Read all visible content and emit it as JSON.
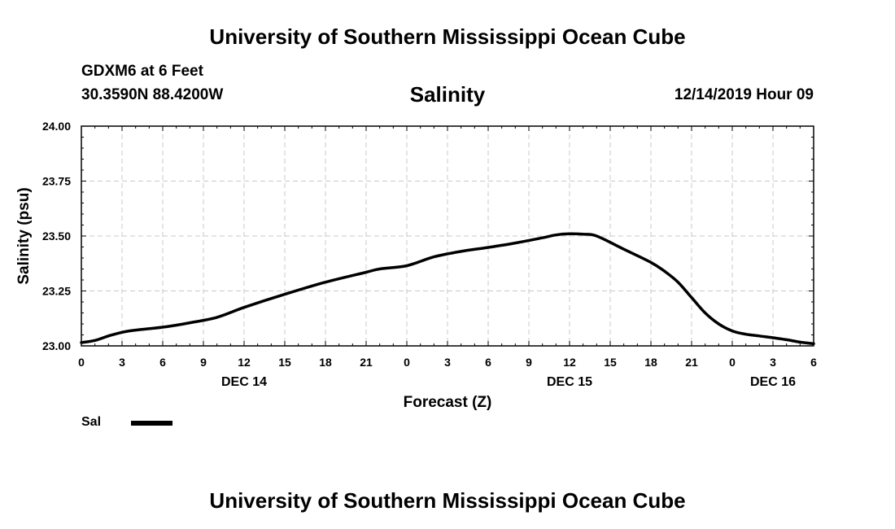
{
  "header": {
    "title": "University of Southern Mississippi Ocean Cube",
    "station": "GDXM6 at 6 Feet",
    "coords": "30.3590N 88.4200W",
    "chart_title": "Salinity",
    "date": "12/14/2019 Hour 09"
  },
  "footer": {
    "title": "University of Southern Mississippi Ocean Cube"
  },
  "legend": {
    "label": "Sal",
    "color": "#000000"
  },
  "chart_data": {
    "type": "line",
    "title": "Salinity",
    "xlabel": "Forecast (Z)",
    "ylabel": "Salinity (psu)",
    "ylim": [
      23.0,
      24.0
    ],
    "xlim": [
      0,
      54
    ],
    "yticks": [
      "23.00",
      "23.25",
      "23.50",
      "23.75",
      "24.00"
    ],
    "xticks": [
      "0",
      "3",
      "6",
      "9",
      "12",
      "15",
      "18",
      "21",
      "0",
      "3",
      "6",
      "9",
      "12",
      "15",
      "18",
      "21",
      "0",
      "3",
      "6"
    ],
    "day_labels": [
      {
        "label": "DEC 14",
        "hour": 12
      },
      {
        "label": "DEC 15",
        "hour": 36
      },
      {
        "label": "DEC 16",
        "hour": 51
      }
    ],
    "grid": true,
    "series": [
      {
        "name": "Sal",
        "x": [
          0,
          1,
          2,
          3,
          4,
          6,
          8,
          10,
          12,
          15,
          18,
          21,
          22,
          24,
          26,
          28,
          30,
          32,
          34,
          35,
          36,
          37,
          38,
          40,
          42,
          43,
          44,
          45,
          46,
          47,
          48,
          49,
          50,
          51,
          52,
          53,
          54
        ],
        "values": [
          23.015,
          23.025,
          23.045,
          23.062,
          23.072,
          23.085,
          23.105,
          23.13,
          23.175,
          23.235,
          23.29,
          23.335,
          23.35,
          23.365,
          23.405,
          23.43,
          23.448,
          23.468,
          23.492,
          23.505,
          23.51,
          23.508,
          23.5,
          23.44,
          23.38,
          23.34,
          23.29,
          23.22,
          23.15,
          23.1,
          23.068,
          23.053,
          23.045,
          23.037,
          23.028,
          23.017,
          23.01
        ]
      }
    ]
  }
}
